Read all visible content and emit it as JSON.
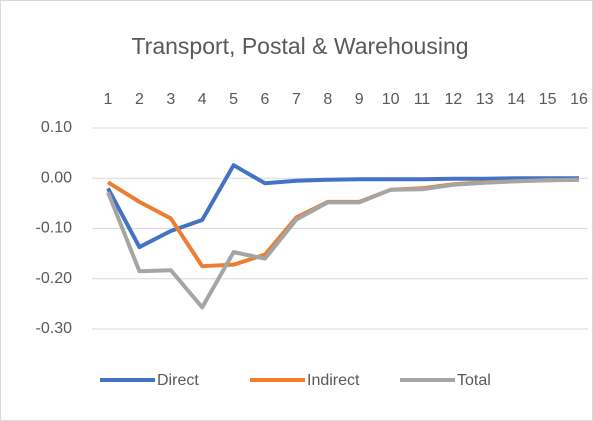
{
  "chart_data": {
    "type": "line",
    "title": "Transport, Postal & Warehousing",
    "categories": [
      "1",
      "2",
      "3",
      "4",
      "5",
      "6",
      "7",
      "8",
      "9",
      "10",
      "11",
      "12",
      "13",
      "14",
      "15",
      "16"
    ],
    "series": [
      {
        "name": "Direct",
        "color": "#4472c4",
        "values": [
          -0.02,
          -0.137,
          -0.105,
          -0.083,
          0.026,
          -0.01,
          -0.005,
          -0.003,
          -0.002,
          -0.002,
          -0.002,
          -0.001,
          -0.001,
          0,
          0,
          0
        ]
      },
      {
        "name": "Indirect",
        "color": "#ed7d31",
        "values": [
          -0.008,
          -0.047,
          -0.08,
          -0.175,
          -0.172,
          -0.152,
          -0.078,
          -0.047,
          -0.047,
          -0.023,
          -0.02,
          -0.012,
          -0.008,
          -0.006,
          -0.004,
          -0.003
        ]
      },
      {
        "name": "Total",
        "color": "#a5a5a5",
        "values": [
          -0.028,
          -0.185,
          -0.183,
          -0.257,
          -0.147,
          -0.16,
          -0.082,
          -0.048,
          -0.048,
          -0.023,
          -0.022,
          -0.013,
          -0.009,
          -0.006,
          -0.004,
          -0.003
        ]
      }
    ],
    "ylim": [
      -0.3,
      0.1
    ],
    "yticks": [
      {
        "value": 0.1,
        "label": "0.10"
      },
      {
        "value": 0,
        "label": "0.00"
      },
      {
        "value": -0.1,
        "label": "-0.10"
      },
      {
        "value": -0.2,
        "label": "-0.20"
      },
      {
        "value": -0.3,
        "label": "-0.30"
      }
    ],
    "grid": true,
    "legend": "bottom"
  }
}
